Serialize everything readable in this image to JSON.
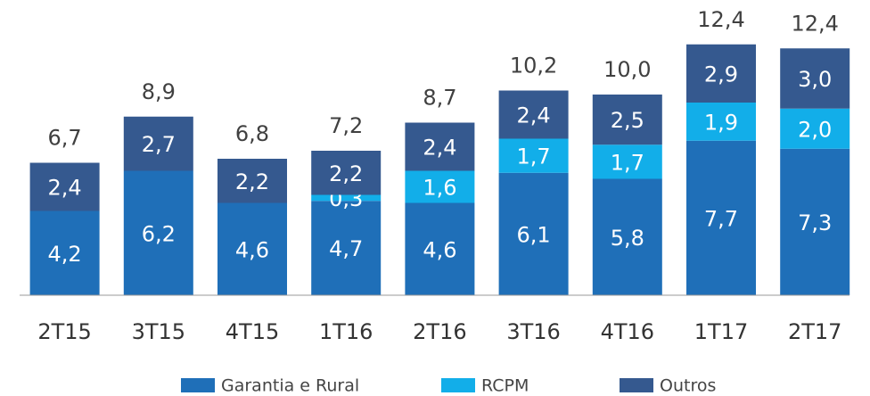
{
  "chart_data": {
    "type": "stacked_bar",
    "categories": [
      "2T15",
      "3T15",
      "4T15",
      "1T16",
      "2T16",
      "3T16",
      "4T16",
      "1T17",
      "2T17"
    ],
    "series": [
      {
        "name": "Garantia e Rural",
        "color": "#1f6fb8",
        "values": [
          4.2,
          6.2,
          4.6,
          4.7,
          4.6,
          6.1,
          5.8,
          7.7,
          7.3
        ],
        "value_labels": [
          "4,2",
          "6,2",
          "4,6",
          "4,7",
          "4,6",
          "6,1",
          "5,8",
          "7,7",
          "7,3"
        ]
      },
      {
        "name": "RCPM",
        "color": "#12aee9",
        "values": [
          null,
          null,
          null,
          0.3,
          1.6,
          1.7,
          1.7,
          1.9,
          2.0
        ],
        "value_labels": [
          null,
          null,
          null,
          "0,3",
          "1,6",
          "1,7",
          "1,7",
          "1,9",
          "2,0"
        ]
      },
      {
        "name": "Outros",
        "color": "#35598f",
        "values": [
          2.4,
          2.7,
          2.2,
          2.2,
          2.4,
          2.4,
          2.5,
          2.9,
          3.0
        ],
        "value_labels": [
          "2,4",
          "2,7",
          "2,2",
          "2,2",
          "2,4",
          "2,4",
          "2,5",
          "2,9",
          "3,0"
        ]
      }
    ],
    "totals": [
      6.7,
      8.9,
      6.8,
      7.2,
      8.7,
      10.2,
      10.0,
      12.4,
      12.4
    ],
    "total_labels": [
      "6,7",
      "8,9",
      "6,8",
      "7,2",
      "8,7",
      "10,2",
      "10,0",
      "12,4",
      "12,4"
    ]
  }
}
